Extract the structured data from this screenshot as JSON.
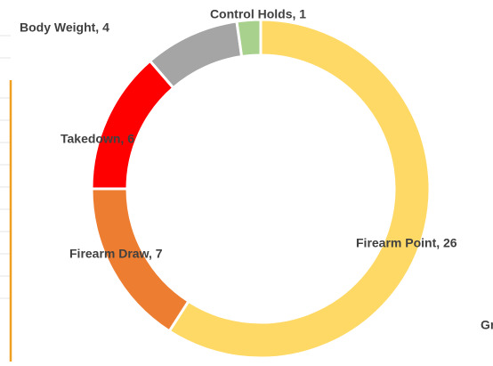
{
  "chart_data": {
    "type": "donut",
    "categories": [
      "Firearm Point",
      "Firearm Draw",
      "Takedown",
      "Body Weight",
      "Control Holds"
    ],
    "values": [
      26,
      7,
      6,
      4,
      1
    ],
    "value_labels": [
      "Firearm Point, 26",
      "Firearm Draw, 7",
      "Takedown, 6",
      "Body Weight, 4",
      "Control Holds, 1"
    ],
    "colors": [
      "#ffd966",
      "#ed7d31",
      "#ff0000",
      "#a5a5a5",
      "#a9d18e"
    ]
  },
  "fragments": {
    "right_text": "Gr"
  }
}
